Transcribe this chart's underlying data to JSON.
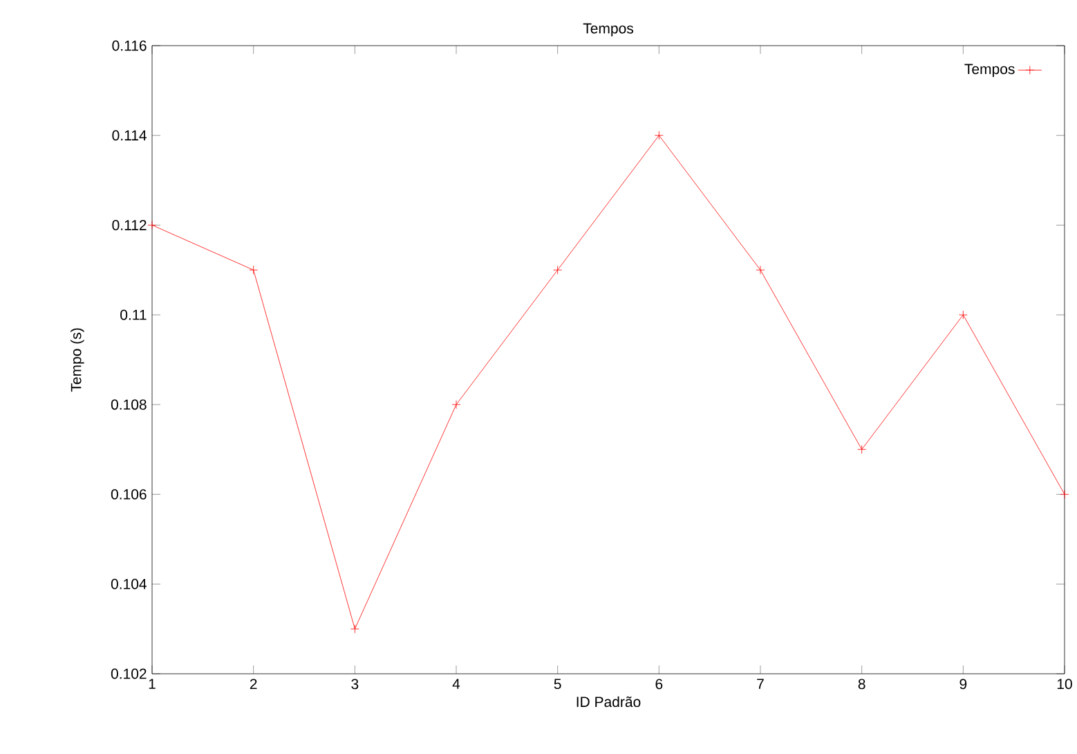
{
  "chart_data": {
    "type": "line",
    "title": "Tempos",
    "xlabel": "ID Padrão",
    "ylabel": "Tempo (s)",
    "x": [
      1,
      2,
      3,
      4,
      5,
      6,
      7,
      8,
      9,
      10
    ],
    "series": [
      {
        "name": "Tempos",
        "color": "#ff0000",
        "values": [
          0.112,
          0.111,
          0.103,
          0.108,
          0.111,
          0.114,
          0.111,
          0.107,
          0.11,
          0.106
        ]
      }
    ],
    "xlim": [
      1,
      10
    ],
    "xticks": [
      1,
      2,
      3,
      4,
      5,
      6,
      7,
      8,
      9,
      10
    ],
    "ylim": [
      0.102,
      0.116
    ],
    "yticks": [
      0.102,
      0.104,
      0.106,
      0.108,
      0.11,
      0.112,
      0.114,
      0.116
    ],
    "grid": false,
    "legend": "top right",
    "marker": "cross",
    "line_style": "solid"
  }
}
